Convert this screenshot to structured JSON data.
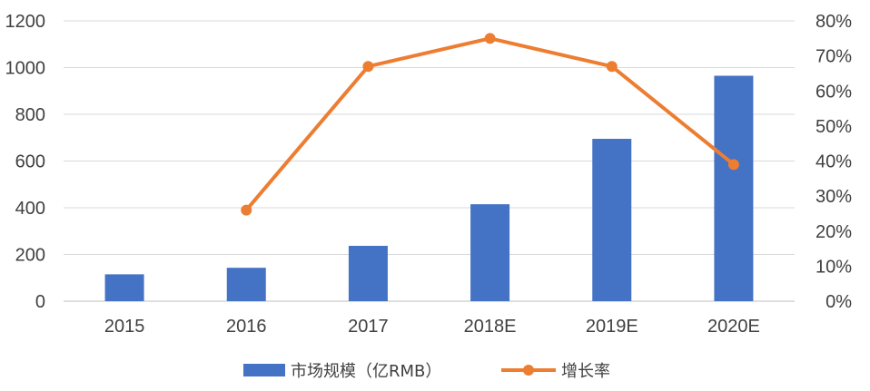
{
  "chart_data": {
    "type": "bar+line",
    "categories": [
      "2015",
      "2016",
      "2017",
      "2018E",
      "2019E",
      "2020E"
    ],
    "series": [
      {
        "name": "市场规模（亿RMB）",
        "type": "bar",
        "axis": "left",
        "color": "#4472C4",
        "values": [
          115,
          143,
          237,
          415,
          695,
          965
        ]
      },
      {
        "name": "增长率",
        "type": "line",
        "axis": "right",
        "color": "#ED7D31",
        "values": [
          null,
          0.26,
          0.67,
          0.75,
          0.67,
          0.39
        ]
      }
    ],
    "left_axis": {
      "min": 0,
      "max": 1200,
      "step": 200,
      "ticks": [
        "0",
        "200",
        "400",
        "600",
        "800",
        "1000",
        "1200"
      ]
    },
    "right_axis": {
      "min": 0,
      "max": 0.8,
      "step": 0.1,
      "ticks": [
        "0%",
        "10%",
        "20%",
        "30%",
        "40%",
        "50%",
        "60%",
        "70%",
        "80%"
      ]
    },
    "grid": true,
    "legend": "bottom"
  }
}
